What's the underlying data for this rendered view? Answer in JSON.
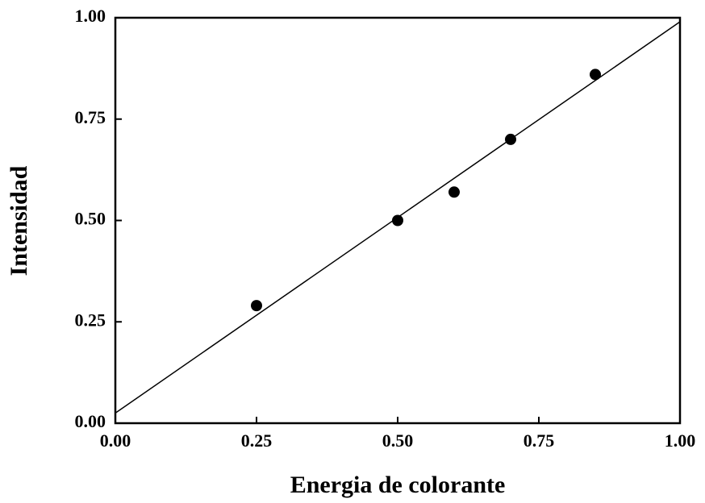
{
  "chart_data": {
    "type": "scatter",
    "xlabel": "Energia de colorante",
    "ylabel": "Intensidad",
    "series": [
      {
        "mode": "points",
        "color": "#000000",
        "x": [
          0.25,
          0.5,
          0.6,
          0.7,
          0.85
        ],
        "values": [
          0.29,
          0.5,
          0.57,
          0.7,
          0.86
        ]
      },
      {
        "mode": "line",
        "color": "#000000",
        "x": [
          0,
          1
        ],
        "values": [
          0.025,
          0.99
        ]
      }
    ],
    "xlim": [
      0,
      1
    ],
    "ylim": [
      0,
      1
    ],
    "xticks": [
      {
        "value": 0,
        "label": "0.00"
      },
      {
        "value": 0.25,
        "label": "0.25"
      },
      {
        "value": 0.5,
        "label": "0.50"
      },
      {
        "value": 0.75,
        "label": "0.75"
      },
      {
        "value": 1,
        "label": "1.00"
      }
    ],
    "yticks": [
      {
        "value": 0,
        "label": "0.00"
      },
      {
        "value": 0.25,
        "label": "0.25"
      },
      {
        "value": 0.5,
        "label": "0.50"
      },
      {
        "value": 0.75,
        "label": "0.75"
      },
      {
        "value": 1,
        "label": "1.00"
      }
    ],
    "grid": false
  }
}
